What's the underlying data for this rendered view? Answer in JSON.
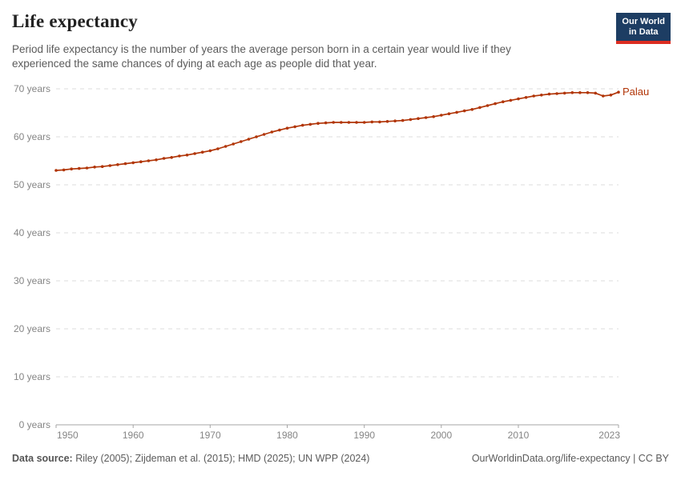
{
  "header": {
    "title": "Life expectancy",
    "subtitle": "Period life expectancy is the number of years the average person born in a certain year would live if they experienced the same chances of dying at each age as people did that year."
  },
  "logo": {
    "line1": "Our World",
    "line2": "in Data"
  },
  "chart_data": {
    "type": "line",
    "title": "Life expectancy",
    "xlabel": "",
    "ylabel": "",
    "xlim": [
      1950,
      2023
    ],
    "ylim": [
      0,
      70
    ],
    "x_ticks": [
      1950,
      1960,
      1970,
      1980,
      1990,
      2000,
      2010,
      2023
    ],
    "y_ticks": [
      0,
      10,
      20,
      30,
      40,
      50,
      60,
      70
    ],
    "y_tick_suffix": " years",
    "grid": "horizontal-dashed",
    "legend_position": "end-of-line-label",
    "series": [
      {
        "name": "Palau",
        "color": "#B13507",
        "x": [
          1950,
          1951,
          1952,
          1953,
          1954,
          1955,
          1956,
          1957,
          1958,
          1959,
          1960,
          1961,
          1962,
          1963,
          1964,
          1965,
          1966,
          1967,
          1968,
          1969,
          1970,
          1971,
          1972,
          1973,
          1974,
          1975,
          1976,
          1977,
          1978,
          1979,
          1980,
          1981,
          1982,
          1983,
          1984,
          1985,
          1986,
          1987,
          1988,
          1989,
          1990,
          1991,
          1992,
          1993,
          1994,
          1995,
          1996,
          1997,
          1998,
          1999,
          2000,
          2001,
          2002,
          2003,
          2004,
          2005,
          2006,
          2007,
          2008,
          2009,
          2010,
          2011,
          2012,
          2013,
          2014,
          2015,
          2016,
          2017,
          2018,
          2019,
          2020,
          2021,
          2022,
          2023
        ],
        "values": [
          53.0,
          53.1,
          53.3,
          53.4,
          53.5,
          53.7,
          53.8,
          54.0,
          54.2,
          54.4,
          54.6,
          54.8,
          55.0,
          55.2,
          55.5,
          55.7,
          56.0,
          56.2,
          56.5,
          56.8,
          57.1,
          57.5,
          58.0,
          58.5,
          59.0,
          59.5,
          60.0,
          60.5,
          61.0,
          61.4,
          61.8,
          62.1,
          62.4,
          62.6,
          62.8,
          62.9,
          63.0,
          63.0,
          63.0,
          63.0,
          63.0,
          63.1,
          63.1,
          63.2,
          63.3,
          63.4,
          63.6,
          63.8,
          64.0,
          64.2,
          64.5,
          64.8,
          65.1,
          65.4,
          65.7,
          66.1,
          66.5,
          66.9,
          67.3,
          67.6,
          67.9,
          68.2,
          68.5,
          68.7,
          68.9,
          69.0,
          69.1,
          69.2,
          69.2,
          69.2,
          69.1,
          68.5,
          68.7,
          69.3
        ]
      }
    ]
  },
  "footer": {
    "source_label": "Data source:",
    "source_text": " Riley (2005); Zijdeman et al. (2015); HMD (2025); UN WPP (2024)",
    "right_text": "OurWorldinData.org/life-expectancy | CC BY"
  },
  "colors": {
    "line": "#B13507",
    "grid": "#dcdcdc",
    "axis": "#a5a5a5",
    "tick_label": "#858585",
    "title": "#222222",
    "subtitle": "#5b5b5b",
    "footer": "#5b5b5b",
    "logo_bg": "#1d3d63",
    "logo_bar": "#dc2d21"
  }
}
